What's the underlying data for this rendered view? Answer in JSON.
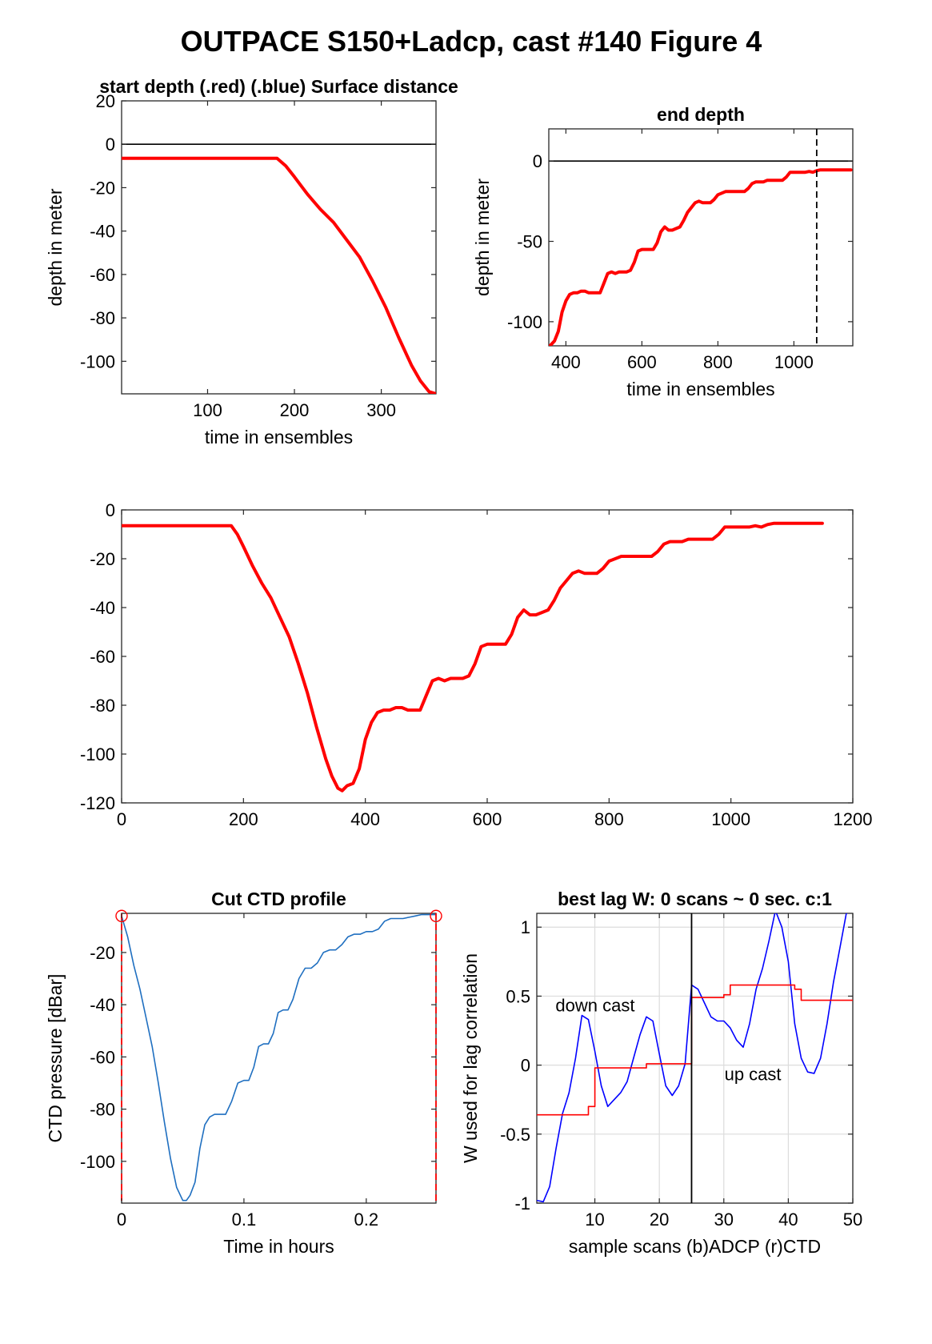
{
  "figure": {
    "suptitle": "OUTPACE S150+Ladcp, cast #140   Figure 4"
  },
  "chart_data": [
    {
      "id": "start-depth",
      "type": "line",
      "title": "start depth (.red) (.blue) Surface distance",
      "xlabel": "time in ensembles",
      "ylabel": "depth in meter",
      "xlim": [
        1,
        363
      ],
      "ylim": [
        -115,
        20
      ],
      "xticks": [
        100,
        200,
        300
      ],
      "yticks": [
        20,
        0,
        -20,
        -40,
        -60,
        -80,
        -100
      ],
      "grid": false,
      "hlines": [
        {
          "y": 0,
          "color": "#000000"
        }
      ],
      "series": [
        {
          "color": "#ff0000",
          "width": 4,
          "x": [
            1,
            50,
            100,
            150,
            180,
            190,
            200,
            215,
            230,
            245,
            260,
            275,
            290,
            305,
            320,
            335,
            345,
            355,
            363
          ],
          "y": [
            -6.5,
            -6.5,
            -6.5,
            -6.5,
            -6.5,
            -10,
            -15,
            -23,
            -30,
            -36,
            -44,
            -52,
            -63,
            -75,
            -89,
            -102,
            -109,
            -114,
            -115
          ]
        }
      ]
    },
    {
      "id": "end-depth",
      "type": "line",
      "title": "end depth",
      "xlabel": "time in ensembles",
      "ylabel": "depth in meter",
      "xlim": [
        355,
        1155
      ],
      "ylim": [
        -115,
        20
      ],
      "xticks": [
        400,
        600,
        800,
        1000
      ],
      "yticks": [
        0,
        -50,
        -100
      ],
      "grid": false,
      "hlines": [
        {
          "y": 0,
          "color": "#000000"
        }
      ],
      "vlines": [
        {
          "x": 1060,
          "color": "#000000",
          "dash": true
        }
      ],
      "series": [
        {
          "color": "#ff0000",
          "width": 4,
          "x": [
            358,
            370,
            380,
            390,
            400,
            410,
            420,
            430,
            440,
            450,
            460,
            470,
            480,
            490,
            500,
            510,
            520,
            530,
            540,
            560,
            570,
            580,
            590,
            600,
            610,
            620,
            630,
            640,
            650,
            660,
            670,
            680,
            690,
            700,
            710,
            720,
            730,
            740,
            750,
            760,
            780,
            790,
            800,
            820,
            830,
            840,
            860,
            870,
            880,
            890,
            900,
            920,
            930,
            940,
            950,
            970,
            980,
            990,
            1000,
            1020,
            1030,
            1040,
            1050,
            1060,
            1070,
            1090,
            1110,
            1130,
            1150
          ],
          "y": [
            -115,
            -112,
            -106,
            -94,
            -87,
            -83,
            -82,
            -82,
            -81,
            -81,
            -82,
            -82,
            -82,
            -82,
            -76,
            -70,
            -69,
            -70,
            -69,
            -69,
            -68,
            -63,
            -56,
            -55,
            -55,
            -55,
            -55,
            -51,
            -44,
            -41,
            -43,
            -43,
            -42,
            -41,
            -37,
            -32,
            -29,
            -26,
            -25,
            -26,
            -26,
            -24,
            -21,
            -19,
            -19,
            -19,
            -19,
            -19,
            -17,
            -14,
            -13,
            -13,
            -12,
            -12,
            -12,
            -12,
            -10,
            -7,
            -7,
            -7,
            -7,
            -6.5,
            -7,
            -6,
            -5.5,
            -5.5,
            -5.5,
            -5.5,
            -5.5
          ]
        }
      ]
    },
    {
      "id": "full-profile",
      "type": "line",
      "title": "",
      "xlabel": "",
      "ylabel": "",
      "xlim": [
        0,
        1200
      ],
      "ylim": [
        -120,
        0
      ],
      "xticks": [
        0,
        200,
        400,
        600,
        800,
        1000,
        1200
      ],
      "yticks": [
        0,
        -20,
        -40,
        -60,
        -80,
        -100,
        -120
      ],
      "grid": false,
      "series": [
        {
          "color": "#ff0000",
          "width": 4,
          "x": [
            0,
            50,
            100,
            150,
            180,
            190,
            200,
            215,
            230,
            245,
            260,
            275,
            290,
            305,
            320,
            335,
            345,
            355,
            362,
            370,
            380,
            390,
            400,
            410,
            420,
            430,
            440,
            450,
            460,
            470,
            480,
            490,
            500,
            510,
            520,
            530,
            540,
            560,
            570,
            580,
            590,
            600,
            610,
            620,
            630,
            640,
            650,
            660,
            670,
            680,
            690,
            700,
            710,
            720,
            730,
            740,
            750,
            760,
            780,
            790,
            800,
            820,
            830,
            840,
            860,
            870,
            880,
            890,
            900,
            920,
            930,
            940,
            950,
            970,
            980,
            990,
            1000,
            1020,
            1030,
            1040,
            1050,
            1060,
            1070,
            1090,
            1110,
            1130,
            1150
          ],
          "y": [
            -6.5,
            -6.5,
            -6.5,
            -6.5,
            -6.5,
            -10,
            -15,
            -23,
            -30,
            -36,
            -44,
            -52,
            -63,
            -75,
            -89,
            -102,
            -109,
            -114,
            -115,
            -113,
            -112,
            -106,
            -94,
            -87,
            -83,
            -82,
            -82,
            -81,
            -81,
            -82,
            -82,
            -82,
            -76,
            -70,
            -69,
            -70,
            -69,
            -69,
            -68,
            -63,
            -56,
            -55,
            -55,
            -55,
            -55,
            -51,
            -44,
            -41,
            -43,
            -43,
            -42,
            -41,
            -37,
            -32,
            -29,
            -26,
            -25,
            -26,
            -26,
            -24,
            -21,
            -19,
            -19,
            -19,
            -19,
            -19,
            -17,
            -14,
            -13,
            -13,
            -12,
            -12,
            -12,
            -12,
            -10,
            -7,
            -7,
            -7,
            -7,
            -6.5,
            -7,
            -6,
            -5.5,
            -5.5,
            -5.5,
            -5.5,
            -5.5
          ]
        }
      ]
    },
    {
      "id": "cut-ctd",
      "type": "line",
      "title": "Cut CTD profile",
      "xlabel": "Time in hours",
      "ylabel": "CTD pressure [dBar]",
      "xlim": [
        0,
        0.257
      ],
      "ylim": [
        -116,
        -5
      ],
      "xticks": [
        0,
        0.1,
        0.2
      ],
      "yticks": [
        -20,
        -40,
        -60,
        -80,
        -100
      ],
      "grid": false,
      "vlines": [
        {
          "x": 0,
          "color": "#ff0000",
          "dash": true
        },
        {
          "x": 0.257,
          "color": "#ff0000",
          "dash": true
        }
      ],
      "markers": [
        {
          "x": 0,
          "y": -6,
          "color": "#ff0000"
        },
        {
          "x": 0.257,
          "y": -6,
          "color": "#ff0000"
        }
      ],
      "series": [
        {
          "color": "#1f6fc0",
          "width": 1.6,
          "x": [
            0,
            0.005,
            0.01,
            0.015,
            0.02,
            0.025,
            0.03,
            0.035,
            0.04,
            0.045,
            0.05,
            0.053,
            0.056,
            0.06,
            0.064,
            0.068,
            0.072,
            0.076,
            0.08,
            0.085,
            0.09,
            0.095,
            0.1,
            0.104,
            0.108,
            0.112,
            0.116,
            0.12,
            0.124,
            0.128,
            0.132,
            0.136,
            0.14,
            0.145,
            0.15,
            0.155,
            0.16,
            0.165,
            0.17,
            0.175,
            0.18,
            0.185,
            0.19,
            0.195,
            0.2,
            0.205,
            0.21,
            0.215,
            0.22,
            0.225,
            0.23,
            0.235,
            0.24,
            0.245,
            0.25,
            0.257
          ],
          "y": [
            -6,
            -14,
            -25,
            -34,
            -45,
            -56,
            -70,
            -85,
            -99,
            -110,
            -115,
            -115,
            -113,
            -108,
            -95,
            -86,
            -83,
            -82,
            -82,
            -82,
            -77,
            -70,
            -69,
            -69,
            -64,
            -56,
            -55,
            -55,
            -51,
            -43,
            -42,
            -42,
            -38,
            -30,
            -26,
            -26,
            -24,
            -20,
            -19,
            -19,
            -17,
            -14,
            -13,
            -13,
            -12,
            -12,
            -11,
            -8,
            -7,
            -7,
            -7,
            -6.5,
            -6,
            -5.5,
            -5.5,
            -5.5
          ]
        }
      ]
    },
    {
      "id": "best-lag",
      "type": "line",
      "title": "best lag W: 0 scans ~ 0 sec.  c:1",
      "xlabel": "sample scans (b)ADCP (r)CTD",
      "ylabel": "W used for lag correlation",
      "xlim": [
        1,
        50
      ],
      "ylim": [
        -1,
        1.1
      ],
      "xticks": [
        10,
        20,
        30,
        40,
        50
      ],
      "yticks": [
        1,
        0.5,
        0,
        -0.5,
        -1
      ],
      "grid": true,
      "vlines": [
        {
          "x": 25,
          "color": "#000000",
          "dash": false
        }
      ],
      "annotations": [
        {
          "text": "down cast",
          "x": 3.9,
          "y": 0.39
        },
        {
          "text": "up cast",
          "x": 30.1,
          "y": -0.11
        }
      ],
      "series": [
        {
          "name": "ADCP",
          "color": "#0000ff",
          "width": 1.6,
          "x": [
            1,
            2,
            3,
            4,
            5,
            6,
            7,
            8,
            9,
            10,
            11,
            12,
            13,
            14,
            15,
            16,
            17,
            18,
            19,
            20,
            21,
            22,
            23,
            24,
            25,
            26,
            27,
            28,
            29,
            30,
            31,
            32,
            33,
            34,
            35,
            36,
            37,
            38,
            39,
            40,
            41,
            42,
            43,
            44,
            45,
            46,
            47,
            48,
            49,
            50
          ],
          "y": [
            -0.98,
            -0.99,
            -0.88,
            -0.6,
            -0.35,
            -0.2,
            0.05,
            0.36,
            0.33,
            0.1,
            -0.15,
            -0.3,
            -0.25,
            -0.2,
            -0.12,
            0.05,
            0.22,
            0.35,
            0.32,
            0.08,
            -0.15,
            -0.22,
            -0.15,
            0.01,
            0.58,
            0.55,
            0.45,
            0.35,
            0.32,
            0.32,
            0.27,
            0.18,
            0.13,
            0.3,
            0.55,
            0.7,
            0.9,
            1.12,
            1.0,
            0.75,
            0.3,
            0.05,
            -0.05,
            -0.06,
            0.05,
            0.3,
            0.6,
            0.85,
            1.1,
            1.12
          ]
        },
        {
          "name": "CTD",
          "color": "#ff0000",
          "width": 1.6,
          "x": [
            1,
            9,
            9,
            10,
            10,
            18,
            18,
            25,
            25,
            30,
            30,
            31,
            31,
            41,
            41,
            42,
            42,
            50
          ],
          "y": [
            -0.36,
            -0.36,
            -0.3,
            -0.3,
            -0.02,
            -0.02,
            0.01,
            0.01,
            0.49,
            0.49,
            0.51,
            0.51,
            0.58,
            0.58,
            0.55,
            0.55,
            0.47,
            0.47
          ]
        }
      ]
    }
  ]
}
